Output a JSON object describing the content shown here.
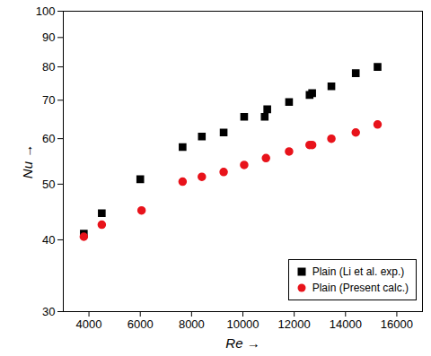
{
  "chart_data": {
    "type": "scatter",
    "x_label": "Re",
    "y_label": "Nu",
    "log": "y",
    "legend": "bottom-right",
    "xlim": [
      3000,
      17000
    ],
    "xticks": [
      4000,
      6000,
      8000,
      10000,
      12000,
      14000,
      16000
    ],
    "ylim": [
      30,
      100
    ],
    "yticks": [
      30,
      40,
      50,
      60,
      70,
      80,
      90,
      100
    ],
    "series": [
      {
        "name": "Plain (Li et al. exp.)",
        "color": "#000000",
        "marker": "square",
        "x": [
          3800,
          4500,
          6000,
          7650,
          8400,
          9250,
          10050,
          10850,
          10950,
          11800,
          12600,
          12700,
          13450,
          14400,
          15250
        ],
        "values": [
          41,
          44.5,
          51,
          58,
          60.5,
          61.5,
          65.5,
          65.5,
          67.5,
          69.5,
          71.5,
          72,
          74,
          78,
          80
        ]
      },
      {
        "name": "Plain (Present calc.)",
        "color": "#e8131b",
        "marker": "circle",
        "x": [
          3800,
          4500,
          6050,
          7650,
          8400,
          9250,
          10050,
          10900,
          11800,
          12600,
          12700,
          13450,
          14400,
          15250
        ],
        "values": [
          40.5,
          42.5,
          45,
          50.5,
          51.5,
          52.5,
          54,
          55.5,
          57,
          58.5,
          58.5,
          60,
          61.5,
          63.5
        ]
      }
    ]
  }
}
